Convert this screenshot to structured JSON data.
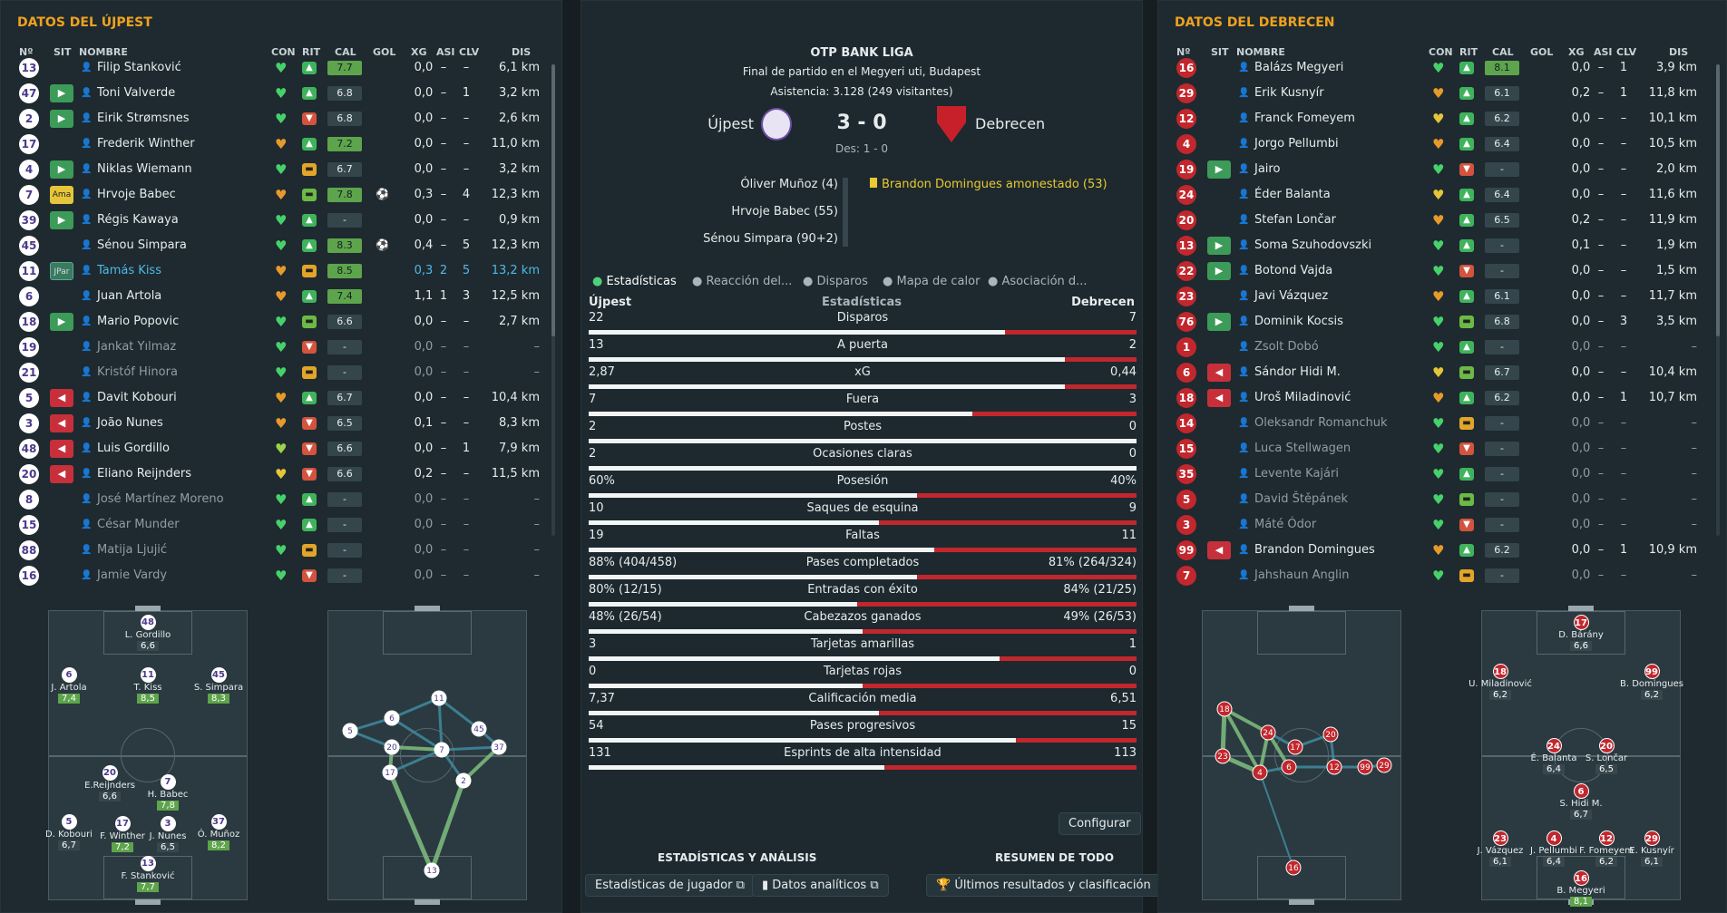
{
  "left": {
    "title": "DATOS DEL ÚJPEST",
    "headers": {
      "n": "Nº",
      "sit": "SIT",
      "nombre": "NOMBRE",
      "con": "CON",
      "rit": "RIT",
      "cal": "CAL",
      "gol": "GOL",
      "xg": "XG",
      "asi": "ASI",
      "clv": "CLV",
      "dis": "DIS"
    },
    "rows": [
      {
        "n": "13",
        "sit": "",
        "name": "Filip Stanković",
        "con": "green",
        "rit": "g",
        "cal": "7.7",
        "gol": "",
        "xg": "0,0",
        "asi": "–",
        "clv": "–",
        "dis": "6,1 km"
      },
      {
        "n": "47",
        "sit": "in",
        "name": "Toni Valverde",
        "con": "green",
        "rit": "g",
        "cal": "6.8",
        "gol": "",
        "xg": "0,0",
        "asi": "–",
        "clv": "1",
        "dis": "3,2 km"
      },
      {
        "n": "2",
        "sit": "in",
        "name": "Eirik Strømsnes",
        "con": "green",
        "rit": "r",
        "cal": "6.8",
        "gol": "",
        "xg": "0,0",
        "asi": "–",
        "clv": "–",
        "dis": "2,6 km"
      },
      {
        "n": "17",
        "sit": "",
        "name": "Frederik Winther",
        "con": "orange",
        "rit": "g",
        "cal": "7.2",
        "gol": "",
        "xg": "0,0",
        "asi": "–",
        "clv": "–",
        "dis": "11,0 km"
      },
      {
        "n": "4",
        "sit": "in",
        "name": "Niklas Wiemann",
        "con": "green",
        "rit": "y",
        "cal": "6.7",
        "gol": "",
        "xg": "0,0",
        "asi": "–",
        "clv": "–",
        "dis": "3,2 km"
      },
      {
        "n": "7",
        "sit": "Ama",
        "name": "Hrvoje Babec",
        "con": "orange",
        "rit": "l",
        "cal": "7.8",
        "gol": "⚽",
        "xg": "0,3",
        "asi": "–",
        "clv": "4",
        "dis": "12,3 km"
      },
      {
        "n": "39",
        "sit": "in",
        "name": "Régis Kawaya",
        "con": "green",
        "rit": "g",
        "cal": "-",
        "gol": "",
        "xg": "0,0",
        "asi": "–",
        "clv": "–",
        "dis": "0,9 km"
      },
      {
        "n": "45",
        "sit": "",
        "name": "Sénou Simpara",
        "con": "green",
        "rit": "g",
        "cal": "8.3",
        "gol": "⚽",
        "xg": "0,4",
        "asi": "–",
        "clv": "5",
        "dis": "12,3 km"
      },
      {
        "n": "11",
        "sit": "JPar",
        "name": "Tamás Kiss",
        "con": "orange",
        "rit": "y",
        "cal": "8.5",
        "gol": "",
        "xg": "0,3",
        "asi": "2",
        "clv": "5",
        "dis": "13,2 km",
        "hl": true
      },
      {
        "n": "6",
        "sit": "",
        "name": "Juan Artola",
        "con": "orange",
        "rit": "g",
        "cal": "7.4",
        "gol": "",
        "xg": "1,1",
        "asi": "1",
        "clv": "3",
        "dis": "12,5 km"
      },
      {
        "n": "18",
        "sit": "in",
        "name": "Mario Popovic",
        "con": "green",
        "rit": "l",
        "cal": "6.6",
        "gol": "",
        "xg": "0,0",
        "asi": "–",
        "clv": "–",
        "dis": "2,7 km"
      },
      {
        "n": "19",
        "sit": "",
        "name": "Jankat Yılmaz",
        "con": "green",
        "rit": "r",
        "cal": "-",
        "gol": "",
        "xg": "0,0",
        "asi": "–",
        "clv": "–",
        "dis": "–",
        "dim": true
      },
      {
        "n": "21",
        "sit": "",
        "name": "Kristóf Hinora",
        "con": "green",
        "rit": "y",
        "cal": "-",
        "gol": "",
        "xg": "0,0",
        "asi": "–",
        "clv": "–",
        "dis": "–",
        "dim": true
      },
      {
        "n": "5",
        "sit": "out",
        "name": "Davit Kobouri",
        "con": "orange",
        "rit": "g",
        "cal": "6.7",
        "gol": "",
        "xg": "0,0",
        "asi": "–",
        "clv": "–",
        "dis": "10,4 km"
      },
      {
        "n": "3",
        "sit": "out",
        "name": "João Nunes",
        "con": "orange",
        "rit": "r",
        "cal": "6.5",
        "gol": "",
        "xg": "0,1",
        "asi": "–",
        "clv": "–",
        "dis": "8,3 km"
      },
      {
        "n": "48",
        "sit": "out",
        "name": "Luis Gordillo",
        "con": "lime",
        "rit": "r",
        "cal": "6.6",
        "gol": "",
        "xg": "0,0",
        "asi": "–",
        "clv": "1",
        "dis": "7,9 km"
      },
      {
        "n": "20",
        "sit": "out",
        "name": "Eliano Reijnders",
        "con": "yellow",
        "rit": "r",
        "cal": "6.6",
        "gol": "",
        "xg": "0,2",
        "asi": "–",
        "clv": "–",
        "dis": "11,5 km"
      },
      {
        "n": "8",
        "sit": "",
        "name": "José Martínez Moreno",
        "con": "green",
        "rit": "g",
        "cal": "-",
        "gol": "",
        "xg": "0,0",
        "asi": "–",
        "clv": "–",
        "dis": "–",
        "dim": true
      },
      {
        "n": "15",
        "sit": "",
        "name": "César Munder",
        "con": "green",
        "rit": "g",
        "cal": "-",
        "gol": "",
        "xg": "0,0",
        "asi": "–",
        "clv": "–",
        "dis": "–",
        "dim": true
      },
      {
        "n": "88",
        "sit": "",
        "name": "Matija Ljujić",
        "con": "green",
        "rit": "y",
        "cal": "-",
        "gol": "",
        "xg": "0,0",
        "asi": "–",
        "clv": "–",
        "dis": "–",
        "dim": true
      },
      {
        "n": "16",
        "sit": "",
        "name": "Jamie Vardy",
        "con": "green",
        "rit": "r",
        "cal": "-",
        "gol": "",
        "xg": "0,0",
        "asi": "–",
        "clv": "–",
        "dis": "–",
        "dim": true
      }
    ],
    "pitch_players": [
      {
        "n": "48",
        "name": "L. Gordillo",
        "rating": "6,6"
      },
      {
        "n": "6",
        "name": "J. Artola",
        "rating": "7,4",
        "hi": true
      },
      {
        "n": "11",
        "name": "T. Kiss",
        "rating": "8,5",
        "hi": true
      },
      {
        "n": "45",
        "name": "S. Simpara",
        "rating": "8,3",
        "hi": true
      },
      {
        "n": "20",
        "name": "E.Reijnders",
        "rating": "6,6"
      },
      {
        "n": "7",
        "name": "H. Babec",
        "rating": "7,8",
        "hi": true
      },
      {
        "n": "5",
        "name": "D. Kobouri",
        "rating": "6,7"
      },
      {
        "n": "17",
        "name": "F. Winther",
        "rating": "7,2",
        "hi": true
      },
      {
        "n": "3",
        "name": "J. Nunes",
        "rating": "6,5"
      },
      {
        "n": "37",
        "name": "Ó. Muñoz",
        "rating": "8,2",
        "hi": true
      },
      {
        "n": "13",
        "name": "F. Stanković",
        "rating": "7,7",
        "hi": true
      }
    ],
    "pass_nodes": [
      "11",
      "6",
      "5",
      "20",
      "7",
      "45",
      "37",
      "17",
      "2",
      "13"
    ]
  },
  "right": {
    "title": "DATOS DEL DEBRECEN",
    "headers": {
      "n": "Nº",
      "sit": "SIT",
      "nombre": "NOMBRE",
      "con": "CON",
      "rit": "RIT",
      "cal": "CAL",
      "gol": "GOL",
      "xg": "XG",
      "asi": "ASI",
      "clv": "CLV",
      "dis": "DIS"
    },
    "rows": [
      {
        "n": "16",
        "sit": "",
        "name": "Balázs Megyeri",
        "con": "green",
        "rit": "g",
        "cal": "8.1",
        "xg": "0,0",
        "asi": "–",
        "clv": "1",
        "dis": "3,9 km"
      },
      {
        "n": "29",
        "sit": "",
        "name": "Erik Kusnyír",
        "con": "orange",
        "rit": "g",
        "cal": "6.1",
        "xg": "0,2",
        "asi": "–",
        "clv": "1",
        "dis": "11,8 km"
      },
      {
        "n": "12",
        "sit": "",
        "name": "Franck Fomeyem",
        "con": "yellow",
        "rit": "g",
        "cal": "6.2",
        "xg": "0,0",
        "asi": "–",
        "clv": "–",
        "dis": "10,1 km"
      },
      {
        "n": "4",
        "sit": "",
        "name": "Jorgo Pellumbi",
        "con": "orange",
        "rit": "g",
        "cal": "6.4",
        "xg": "0,0",
        "asi": "–",
        "clv": "–",
        "dis": "10,5 km"
      },
      {
        "n": "19",
        "sit": "in",
        "name": "Jairo",
        "con": "green",
        "rit": "r",
        "cal": "-",
        "xg": "0,0",
        "asi": "–",
        "clv": "–",
        "dis": "2,0 km"
      },
      {
        "n": "24",
        "sit": "",
        "name": "Éder Balanta",
        "con": "yellow",
        "rit": "g",
        "cal": "6.4",
        "xg": "0,0",
        "asi": "–",
        "clv": "–",
        "dis": "11,6 km"
      },
      {
        "n": "20",
        "sit": "",
        "name": "Stefan Lončar",
        "con": "orange",
        "rit": "g",
        "cal": "6.5",
        "xg": "0,2",
        "asi": "–",
        "clv": "–",
        "dis": "11,9 km"
      },
      {
        "n": "13",
        "sit": "in",
        "name": "Soma Szuhodovszki",
        "con": "green",
        "rit": "g",
        "cal": "-",
        "xg": "0,1",
        "asi": "–",
        "clv": "–",
        "dis": "1,9 km"
      },
      {
        "n": "22",
        "sit": "in",
        "name": "Botond Vajda",
        "con": "green",
        "rit": "r",
        "cal": "-",
        "xg": "0,0",
        "asi": "–",
        "clv": "–",
        "dis": "1,5 km"
      },
      {
        "n": "23",
        "sit": "",
        "name": "Javi Vázquez",
        "con": "orange",
        "rit": "g",
        "cal": "6.1",
        "xg": "0,0",
        "asi": "–",
        "clv": "–",
        "dis": "11,7 km"
      },
      {
        "n": "76",
        "sit": "in",
        "name": "Dominik Kocsis",
        "con": "green",
        "rit": "l",
        "cal": "6.8",
        "xg": "0,0",
        "asi": "–",
        "clv": "3",
        "dis": "3,5 km"
      },
      {
        "n": "1",
        "sit": "",
        "name": "Zsolt Dobó",
        "con": "green",
        "rit": "g",
        "cal": "-",
        "xg": "0,0",
        "asi": "–",
        "clv": "–",
        "dis": "–",
        "dim": true
      },
      {
        "n": "6",
        "sit": "out",
        "name": "Sándor Hidi M.",
        "con": "yellow",
        "rit": "l",
        "cal": "6.7",
        "xg": "0,0",
        "asi": "–",
        "clv": "–",
        "dis": "10,4 km"
      },
      {
        "n": "18",
        "sit": "out",
        "name": "Uroš Miladinović",
        "con": "orange",
        "rit": "g",
        "cal": "6.2",
        "xg": "0,0",
        "asi": "–",
        "clv": "1",
        "dis": "10,7 km"
      },
      {
        "n": "14",
        "sit": "",
        "name": "Oleksandr Romanchuk",
        "con": "green",
        "rit": "y",
        "cal": "-",
        "xg": "0,0",
        "asi": "–",
        "clv": "–",
        "dis": "–",
        "dim": true
      },
      {
        "n": "15",
        "sit": "",
        "name": "Luca Stellwagen",
        "con": "green",
        "rit": "r",
        "cal": "-",
        "xg": "0,0",
        "asi": "–",
        "clv": "–",
        "dis": "–",
        "dim": true
      },
      {
        "n": "35",
        "sit": "",
        "name": "Levente Kajári",
        "con": "green",
        "rit": "g",
        "cal": "-",
        "xg": "0,0",
        "asi": "–",
        "clv": "–",
        "dis": "–",
        "dim": true
      },
      {
        "n": "5",
        "sit": "",
        "name": "David Štěpánek",
        "con": "green",
        "rit": "l",
        "cal": "-",
        "xg": "0,0",
        "asi": "–",
        "clv": "–",
        "dis": "–",
        "dim": true
      },
      {
        "n": "3",
        "sit": "",
        "name": "Máté Ódor",
        "con": "green",
        "rit": "r",
        "cal": "-",
        "xg": "0,0",
        "asi": "–",
        "clv": "–",
        "dis": "–",
        "dim": true
      },
      {
        "n": "99",
        "sit": "out",
        "name": "Brandon Domingues",
        "con": "orange",
        "rit": "g",
        "cal": "6.2",
        "xg": "0,0",
        "asi": "–",
        "clv": "1",
        "dis": "10,9 km"
      },
      {
        "n": "7",
        "sit": "",
        "name": "Jahshaun Anglin",
        "con": "green",
        "rit": "y",
        "cal": "-",
        "xg": "0,0",
        "asi": "–",
        "clv": "–",
        "dis": "–",
        "dim": true
      }
    ],
    "pitch_players": [
      {
        "n": "17",
        "name": "D. Bárány",
        "rating": "6,6"
      },
      {
        "n": "18",
        "name": "U. Miladinović",
        "rating": "6,2"
      },
      {
        "n": "99",
        "name": "B. Domingues",
        "rating": "6,2"
      },
      {
        "n": "24",
        "name": "É. Balanta",
        "rating": "6,4"
      },
      {
        "n": "20",
        "name": "S. Lončar",
        "rating": "6,5"
      },
      {
        "n": "6",
        "name": "S. Hidi M.",
        "rating": "6,7"
      },
      {
        "n": "23",
        "name": "J. Vázquez",
        "rating": "6,1"
      },
      {
        "n": "4",
        "name": "J. Pellumbi",
        "rating": "6,4"
      },
      {
        "n": "12",
        "name": "F. Fomeyem",
        "rating": "6,2"
      },
      {
        "n": "29",
        "name": "E. Kusnyír",
        "rating": "6,1"
      },
      {
        "n": "16",
        "name": "B. Megyeri",
        "rating": "8,1",
        "hi": true
      }
    ],
    "pass_nodes": [
      "18",
      "24",
      "17",
      "20",
      "23",
      "4",
      "6",
      "12",
      "99",
      "29",
      "16"
    ]
  },
  "center": {
    "league": "OTP BANK LIGA",
    "subtitle": "Final de partido en el Megyeri uti, Budapest",
    "attendance": "Asistencia: 3.128 (249 visitantes)",
    "home": "Újpest",
    "away": "Debrecen",
    "score": "3 - 0",
    "halftime": "Des: 1 - 0",
    "scorers": [
      "Óliver Muñoz (4)",
      "Hrvoje Babec (55)",
      "Sénou Simpara (90+2)"
    ],
    "cards": [
      "Brandon Domingues amonestado (53)"
    ],
    "tabs": [
      "Estadísticas",
      "Reacción del...",
      "Disparos",
      "Mapa de calor",
      "Asociación d..."
    ],
    "stats_header": {
      "home": "Újpest",
      "mid": "Estadísticas",
      "away": "Debrecen"
    },
    "stats": [
      {
        "label": "Disparos",
        "home": "22",
        "away": "7",
        "share": 0.76
      },
      {
        "label": "A puerta",
        "home": "13",
        "away": "2",
        "share": 0.87
      },
      {
        "label": "xG",
        "home": "2,87",
        "away": "0,44",
        "share": 0.87
      },
      {
        "label": "Fuera",
        "home": "7",
        "away": "3",
        "share": 0.7
      },
      {
        "label": "Postes",
        "home": "2",
        "away": "0",
        "share": 1
      },
      {
        "label": "Ocasiones claras",
        "home": "2",
        "away": "0",
        "share": 1
      },
      {
        "label": "Posesión",
        "home": "60%",
        "away": "40%",
        "share": 0.6
      },
      {
        "label": "Saques de esquina",
        "home": "10",
        "away": "9",
        "share": 0.53
      },
      {
        "label": "Faltas",
        "home": "19",
        "away": "11",
        "share": 0.63
      },
      {
        "label": "Pases completados",
        "home": "88% (404/458)",
        "away": "81% (264/324)",
        "share": 0.6
      },
      {
        "label": "Entradas con éxito",
        "home": "80% (12/15)",
        "away": "84% (21/25)",
        "share": 0.49
      },
      {
        "label": "Cabezazos ganados",
        "home": "48% (26/54)",
        "away": "49% (26/53)",
        "share": 0.5
      },
      {
        "label": "Tarjetas amarillas",
        "home": "3",
        "away": "1",
        "share": 0.75
      },
      {
        "label": "Tarjetas rojas",
        "home": "0",
        "away": "0",
        "share": 0.5
      },
      {
        "label": "Calificación media",
        "home": "7,37",
        "away": "6,51",
        "share": 0.53
      },
      {
        "label": "Pases progresivos",
        "home": "54",
        "away": "15",
        "share": 0.78
      },
      {
        "label": "Esprints de alta intensidad",
        "home": "131",
        "away": "113",
        "share": 0.54
      }
    ],
    "configure": "Configurar",
    "section_left": "ESTADÍSTICAS Y ANÁLISIS",
    "section_right": "RESUMEN DE TODO",
    "btn1": "Estadísticas de jugador",
    "btn2": "Datos analíticos",
    "btn3": "Últimos resultados y clasificación"
  }
}
